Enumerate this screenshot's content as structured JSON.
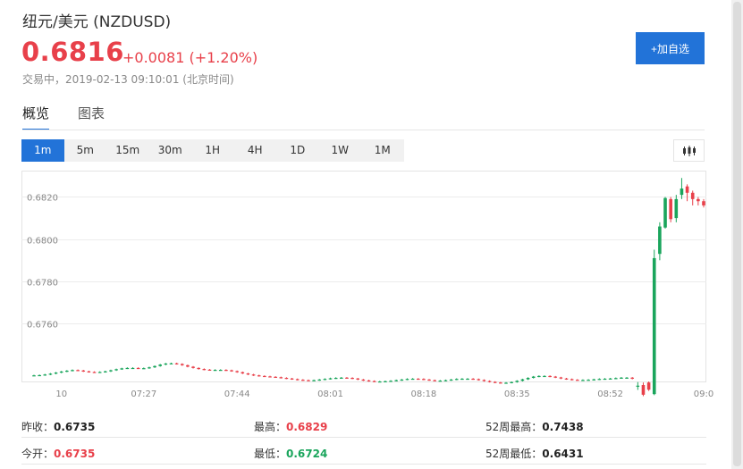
{
  "header": {
    "title": "纽元/美元 (NZDUSD)",
    "price": "0.6816",
    "change": "+0.0081 (+1.20%)",
    "status": "交易中，2019-02-13 09:10:01 (北京时间)"
  },
  "add_button": {
    "label": "+加自选"
  },
  "tabs": [
    {
      "label": "概览",
      "active": true
    },
    {
      "label": "图表",
      "active": false
    }
  ],
  "periods": [
    {
      "label": "1m",
      "active": true
    },
    {
      "label": "5m",
      "active": false
    },
    {
      "label": "15m",
      "active": false
    },
    {
      "label": "30m",
      "active": false
    },
    {
      "label": "1H",
      "active": false
    },
    {
      "label": "4H",
      "active": false
    },
    {
      "label": "1D",
      "active": false
    },
    {
      "label": "1W",
      "active": false
    },
    {
      "label": "1M",
      "active": false
    }
  ],
  "chart_type_icon": "candlestick-icon",
  "colors": {
    "up": "#1aa55c",
    "down": "#e8404a",
    "accent": "#2273d8",
    "grid": "#ececec"
  },
  "chart_data": {
    "type": "candlestick",
    "y_ticks": [
      "0.6820",
      "0.6800",
      "0.6780",
      "0.6760"
    ],
    "y_tick_values": [
      0.682,
      0.68,
      0.678,
      0.676
    ],
    "ylim": [
      0.67325,
      0.68325
    ],
    "x_ticks": [
      "10",
      "07:27",
      "07:44",
      "08:01",
      "08:18",
      "08:35",
      "08:52",
      "09:0"
    ],
    "x_tick_index": [
      5,
      20,
      37,
      54,
      71,
      88,
      105,
      122
    ],
    "flat_series": [
      0.67354,
      0.67355,
      0.67358,
      0.67362,
      0.67367,
      0.67372,
      0.67376,
      0.67379,
      0.67377,
      0.67373,
      0.6737,
      0.67369,
      0.6737,
      0.67373,
      0.67378,
      0.67383,
      0.67387,
      0.67389,
      0.67389,
      0.67387,
      0.67388,
      0.67392,
      0.67398,
      0.67405,
      0.6741,
      0.67411,
      0.67408,
      0.67402,
      0.67395,
      0.67389,
      0.67384,
      0.67381,
      0.6738,
      0.6738,
      0.6738,
      0.67378,
      0.67374,
      0.67369,
      0.67363,
      0.67358,
      0.67354,
      0.67351,
      0.67349,
      0.67347,
      0.67345,
      0.67342,
      0.67339,
      0.67336,
      0.67333,
      0.67331,
      0.6733,
      0.67331,
      0.67334,
      0.67337,
      0.6734,
      0.67342,
      0.67343,
      0.67342,
      0.67339,
      0.67334,
      0.6733,
      0.67327,
      0.67325,
      0.67325,
      0.67326,
      0.67328,
      0.67331,
      0.67334,
      0.67337,
      0.67338,
      0.67337,
      0.67334,
      0.67331,
      0.67329,
      0.67329,
      0.67331,
      0.67334,
      0.67337,
      0.67338,
      0.67338,
      0.67336,
      0.67332,
      0.67327,
      0.67323,
      0.6732,
      0.67318,
      0.67319,
      0.67322,
      0.67328,
      0.67335,
      0.67342,
      0.67348,
      0.67351,
      0.67351,
      0.67348,
      0.67344,
      0.67339,
      0.67336,
      0.67333,
      0.67332,
      0.67332,
      0.67333,
      0.67335,
      0.67337,
      0.67338,
      0.67339,
      0.67341,
      0.67343,
      0.67343,
      0.67338
    ],
    "final_candles": [
      {
        "o": 0.67305,
        "c": 0.67305,
        "h": 0.67322,
        "l": 0.67285
      },
      {
        "o": 0.67308,
        "c": 0.67262,
        "h": 0.6732,
        "l": 0.67255
      },
      {
        "o": 0.6732,
        "c": 0.67286,
        "h": 0.67325,
        "l": 0.6728
      },
      {
        "o": 0.67265,
        "c": 0.6791,
        "h": 0.6795,
        "l": 0.6726
      },
      {
        "o": 0.6793,
        "c": 0.6806,
        "h": 0.6808,
        "l": 0.679
      },
      {
        "o": 0.68055,
        "c": 0.68195,
        "h": 0.682,
        "l": 0.6805
      },
      {
        "o": 0.6819,
        "c": 0.68095,
        "h": 0.682,
        "l": 0.6808
      },
      {
        "o": 0.681,
        "c": 0.6819,
        "h": 0.6821,
        "l": 0.6808
      },
      {
        "o": 0.6821,
        "c": 0.6824,
        "h": 0.6829,
        "l": 0.6819
      },
      {
        "o": 0.6825,
        "c": 0.6822,
        "h": 0.6826,
        "l": 0.6818
      },
      {
        "o": 0.6822,
        "c": 0.6819,
        "h": 0.6823,
        "l": 0.6816
      },
      {
        "o": 0.6819,
        "c": 0.6818,
        "h": 0.682,
        "l": 0.6816
      },
      {
        "o": 0.6818,
        "c": 0.6816,
        "h": 0.6819,
        "l": 0.6815
      }
    ]
  },
  "stats": {
    "prev_close_label": "昨收：",
    "prev_close": "0.6735",
    "high_label": "最高：",
    "high": "0.6829",
    "high52_label": "52周最高：",
    "high52": "0.7438",
    "open_label": "今开：",
    "open": "0.6735",
    "low_label": "最低：",
    "low": "0.6724",
    "low52_label": "52周最低：",
    "low52": "0.6431"
  }
}
